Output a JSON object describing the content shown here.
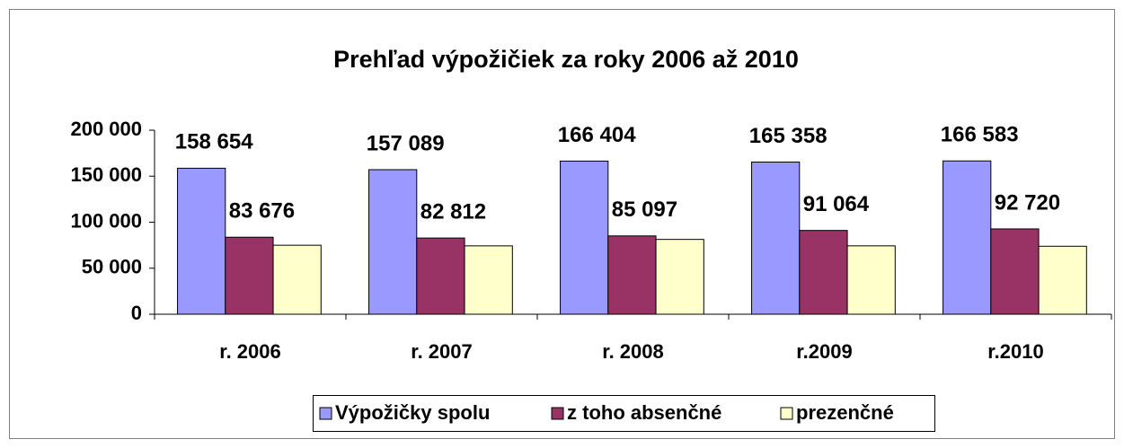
{
  "chart_data": {
    "type": "bar",
    "title": "Prehľad výpožičiek za roky 2006 až 2010",
    "categories": [
      "r. 2006",
      "r. 2007",
      "r. 2008",
      "r.2009",
      "r.2010"
    ],
    "series": [
      {
        "name": "Výpožičky spolu",
        "color": "#9999ff",
        "values": [
          158654,
          157089,
          166404,
          165358,
          166583
        ],
        "value_labels": [
          "158 654",
          "157 089",
          "166 404",
          "165 358",
          "166 583"
        ]
      },
      {
        "name": "z toho absenčné",
        "color": "#993366",
        "values": [
          83676,
          82812,
          85097,
          91064,
          92720
        ],
        "value_labels": [
          "83 676",
          "82 812",
          "85 097",
          "91 064",
          "92 720"
        ]
      },
      {
        "name": "prezenčné",
        "color": "#ffffcc",
        "values": [
          74978,
          74277,
          81307,
          74294,
          73863
        ]
      }
    ],
    "ylim": [
      0,
      200000
    ],
    "yticks": [
      {
        "value": 0,
        "label": "0"
      },
      {
        "value": 50000,
        "label": "50 000"
      },
      {
        "value": 100000,
        "label": "100 000"
      },
      {
        "value": 150000,
        "label": "150 000"
      },
      {
        "value": 200000,
        "label": "200 000"
      }
    ],
    "grid": false,
    "legend": "bottom"
  }
}
